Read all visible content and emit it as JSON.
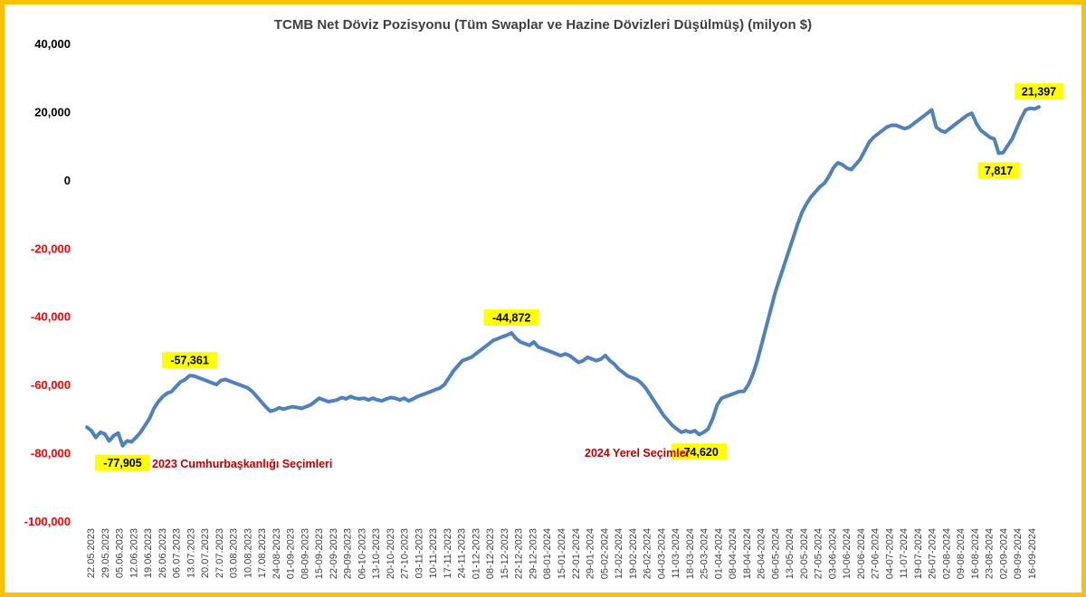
{
  "chart_data": {
    "type": "line",
    "title": "TCMB Net Döviz Pozisyonu (Tüm Swaplar ve Hazine Dövizleri Düşülmüş) (milyon $)",
    "xlabel": "",
    "ylabel": "",
    "ylim": [
      -100000,
      40000
    ],
    "ytick_step": 20000,
    "ytick_labels": [
      "40,000",
      "20,000",
      "0",
      "-20,000",
      "-40,000",
      "-60,000",
      "-80,000",
      "-100,000"
    ],
    "grid": false,
    "legend": "none",
    "x_tick_labels": [
      "22.05.2023",
      "29.05.2023",
      "05.06.2023",
      "12.06.2023",
      "19.06.2023",
      "26.06.2023",
      "06.07.2023",
      "13.07.2023",
      "20.07.2023",
      "27.07.2023",
      "03.08.2023",
      "10.08.2023",
      "17.08.2023",
      "24-08-2023",
      "01-09-2023",
      "08-09-2023",
      "15-09-2023",
      "22-09-2023",
      "29-09-2023",
      "06-10-2023",
      "13-10-2023",
      "20-10-2023",
      "27-10-2023",
      "03-11-2023",
      "10-11-2023",
      "17-11-2023",
      "24-11-2023",
      "01-12-2023",
      "08-12-2023",
      "15-12-2023",
      "22-12-2023",
      "29-12-2023",
      "08-01-2024",
      "15-01-2024",
      "22-01-2024",
      "29-01-2024",
      "05-02-2024",
      "12-02-2024",
      "19-02-2024",
      "26-02-2024",
      "04-03-2024",
      "11-03-2024",
      "18-03-2024",
      "25-03-2024",
      "01-04-2024",
      "08-04-2024",
      "18-04-2024",
      "26-04-2024",
      "06-05-2024",
      "13-05-2024",
      "20-05-2024",
      "27-05-2024",
      "03-06-2024",
      "10-06-2024",
      "20-06-2024",
      "27-06-2024",
      "04-07-2024",
      "11-07-2024",
      "19-07-2024",
      "26-07-2024",
      "02-08-2024",
      "09-08-2024",
      "16-08-2024",
      "23-08-2024",
      "02-09-2024",
      "09-09-2024",
      "16-09-2024"
    ],
    "series": [
      {
        "color": "#4f81bd",
        "values": [
          -72500,
          -73500,
          -75500,
          -74000,
          -74500,
          -76500,
          -75000,
          -74200,
          -77905,
          -76500,
          -76800,
          -75500,
          -74000,
          -72000,
          -70000,
          -67000,
          -65000,
          -63500,
          -62500,
          -62000,
          -60500,
          -59200,
          -58500,
          -57361,
          -57500,
          -58000,
          -58500,
          -59000,
          -59500,
          -60000,
          -58800,
          -58500,
          -59000,
          -59500,
          -60000,
          -60500,
          -61000,
          -62000,
          -63500,
          -65000,
          -66500,
          -67800,
          -67500,
          -66800,
          -67200,
          -66800,
          -66500,
          -66700,
          -67000,
          -66500,
          -66000,
          -65000,
          -64000,
          -64500,
          -65000,
          -64800,
          -64500,
          -63800,
          -64200,
          -63500,
          -64000,
          -64200,
          -64000,
          -64500,
          -64000,
          -64500,
          -64800,
          -64200,
          -63800,
          -64000,
          -64500,
          -64000,
          -64800,
          -64200,
          -63500,
          -63000,
          -62500,
          -62000,
          -61500,
          -61000,
          -60000,
          -58000,
          -56000,
          -54500,
          -53000,
          -52500,
          -52000,
          -51000,
          -50000,
          -49000,
          -48000,
          -47000,
          -46500,
          -46000,
          -45500,
          -44872,
          -46500,
          -47500,
          -48000,
          -48500,
          -47500,
          -49000,
          -49500,
          -50000,
          -50500,
          -51000,
          -51500,
          -51000,
          -51500,
          -52500,
          -53500,
          -53000,
          -52000,
          -52500,
          -53000,
          -52500,
          -51500,
          -53000,
          -54000,
          -55500,
          -56500,
          -57500,
          -58000,
          -58500,
          -59500,
          -61000,
          -63000,
          -65000,
          -67000,
          -69000,
          -70500,
          -72000,
          -73000,
          -74000,
          -73500,
          -74000,
          -73500,
          -74620,
          -74000,
          -73000,
          -70000,
          -66000,
          -64000,
          -63500,
          -63000,
          -62500,
          -62000,
          -62000,
          -60000,
          -57000,
          -53000,
          -48000,
          -43000,
          -38000,
          -33000,
          -29000,
          -25000,
          -21000,
          -17000,
          -13000,
          -9500,
          -7000,
          -5000,
          -3500,
          -2000,
          -1000,
          1000,
          3500,
          5000,
          4500,
          3500,
          3000,
          4500,
          6000,
          8500,
          11000,
          12500,
          13500,
          14500,
          15500,
          16000,
          16000,
          15500,
          15000,
          15500,
          16500,
          17500,
          18500,
          19500,
          20500,
          15500,
          14500,
          14000,
          15000,
          16000,
          17000,
          18000,
          19000,
          19500,
          16500,
          14500,
          13500,
          12500,
          12000,
          7817,
          8000,
          10000,
          12000,
          15000,
          18000,
          20500,
          21000,
          20800,
          21397
        ]
      }
    ],
    "annotations": [
      {
        "index": 8,
        "label": "-77,905",
        "box": "below"
      },
      {
        "index": 23,
        "label": "-57,361",
        "box": "above"
      },
      {
        "index": 95,
        "label": "-44,872",
        "box": "above"
      },
      {
        "index": 137,
        "label": "-74,620",
        "box": "below"
      },
      {
        "index": 204,
        "label": "7,817",
        "box": "below"
      },
      {
        "index": 213,
        "label": "21,397",
        "box": "above"
      }
    ],
    "events": [
      {
        "label": "2023 Cumhurbaşkanlığı Seçimleri"
      },
      {
        "label": "2024 Yerel Seçimler"
      }
    ]
  },
  "colors": {
    "line": "#4f81bd",
    "negative_tick": "#ff0000",
    "positive_tick": "#000000",
    "callout_fill": "#ffff00",
    "event_text": "#c00000",
    "frame_border": "#ffc000"
  }
}
